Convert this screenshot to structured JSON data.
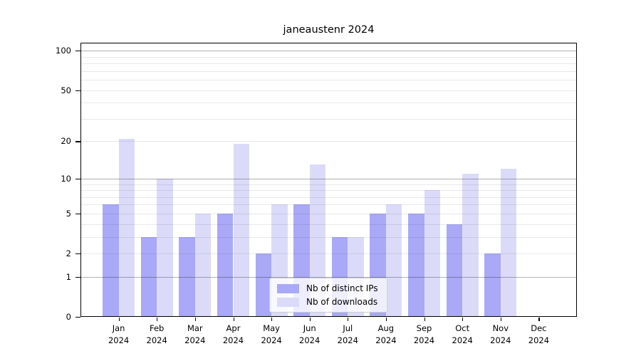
{
  "figure": {
    "title": "janeaustenr 2024"
  },
  "chart_data": {
    "type": "bar",
    "title": "janeaustenr 2024",
    "categories": [
      "Jan",
      "Feb",
      "Mar",
      "Apr",
      "May",
      "Jun",
      "Jul",
      "Aug",
      "Sep",
      "Oct",
      "Nov",
      "Dec"
    ],
    "category_year": "2024",
    "series": [
      {
        "name": "Nb of distinct IPs",
        "color": "#a9a9f7",
        "values": [
          6,
          3,
          3,
          5,
          2,
          6,
          3,
          5,
          5,
          4,
          2,
          0
        ]
      },
      {
        "name": "Nb of downloads",
        "color": "#dbdbf9",
        "values": [
          21,
          10,
          5,
          19,
          6,
          13,
          3,
          6,
          8,
          11,
          12,
          0
        ]
      }
    ],
    "y_scale": "log1p",
    "ylim": [
      0,
      115
    ],
    "y_ticks": [
      0,
      1,
      2,
      5,
      10,
      20,
      50,
      100
    ],
    "grid_major": [
      1,
      10,
      100
    ],
    "grid_minor": [
      2,
      3,
      4,
      5,
      6,
      7,
      8,
      9,
      20,
      30,
      40,
      50,
      60,
      70,
      80,
      90
    ],
    "legend_position": "lower-center",
    "bar_group_width_fraction": 0.84
  }
}
